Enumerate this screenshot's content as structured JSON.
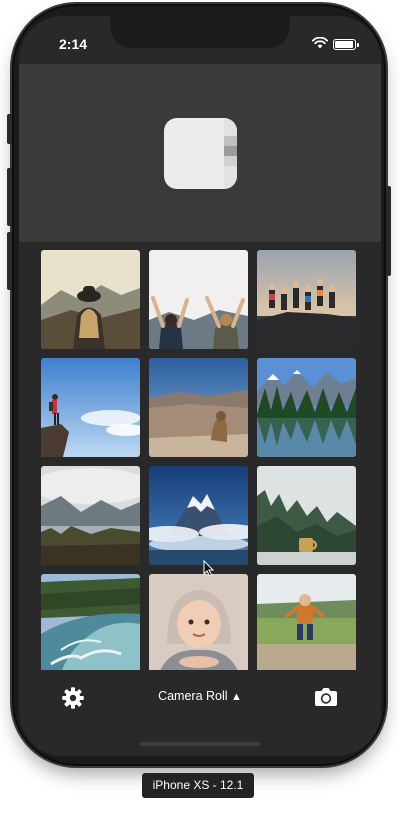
{
  "status_bar": {
    "time": "2:14"
  },
  "toolbar": {
    "album_label": "Camera Roll",
    "album_arrow": "▲"
  },
  "photos": [
    {
      "icon": "photo-woman-hat-mountains"
    },
    {
      "icon": "photo-friends-arms-raised"
    },
    {
      "icon": "photo-group-jumping-sunset"
    },
    {
      "icon": "photo-hiker-on-cliff"
    },
    {
      "icon": "photo-marmot-canyon"
    },
    {
      "icon": "photo-mountain-lake-forest"
    },
    {
      "icon": "photo-valley-lake-clouds"
    },
    {
      "icon": "photo-snowy-peak"
    },
    {
      "icon": "photo-foggy-forest-mug"
    },
    {
      "icon": "photo-river-rapids"
    },
    {
      "icon": "photo-baby-portrait"
    },
    {
      "icon": "photo-child-jumping-field"
    }
  ],
  "device_label": "iPhone XS - 12.1"
}
